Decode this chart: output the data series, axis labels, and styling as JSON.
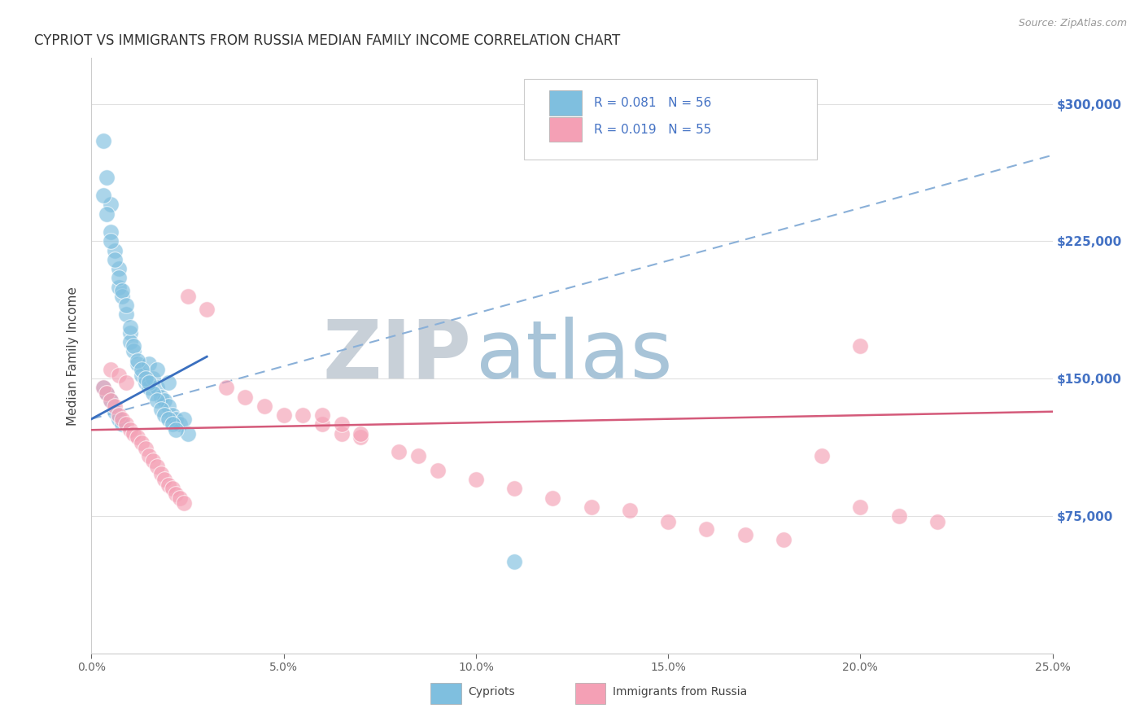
{
  "title": "CYPRIOT VS IMMIGRANTS FROM RUSSIA MEDIAN FAMILY INCOME CORRELATION CHART",
  "source_text": "Source: ZipAtlas.com",
  "ylabel": "Median Family Income",
  "xlim": [
    0.0,
    0.25
  ],
  "ylim": [
    0,
    325000
  ],
  "xticks": [
    0.0,
    0.05,
    0.1,
    0.15,
    0.2,
    0.25
  ],
  "xticklabels": [
    "0.0%",
    "5.0%",
    "10.0%",
    "15.0%",
    "20.0%",
    "25.0%"
  ],
  "yticks": [
    0,
    75000,
    150000,
    225000,
    300000
  ],
  "yticklabels": [
    "",
    "$75,000",
    "$150,000",
    "$225,000",
    "$300,000"
  ],
  "legend_labels": [
    "Cypriots",
    "Immigrants from Russia"
  ],
  "blue_color": "#7fbfdf",
  "pink_color": "#f4a0b5",
  "blue_line_color": "#3a6fbf",
  "pink_line_color": "#d45a7a",
  "dash_line_color": "#8ab0d8",
  "watermark_zip": "ZIP",
  "watermark_atlas": "atlas",
  "watermark_zip_color": "#c8d0d8",
  "watermark_atlas_color": "#a8c4d8",
  "background_color": "#ffffff",
  "blue_x": [
    0.003,
    0.004,
    0.005,
    0.005,
    0.006,
    0.007,
    0.007,
    0.008,
    0.009,
    0.01,
    0.01,
    0.011,
    0.012,
    0.013,
    0.014,
    0.015,
    0.015,
    0.016,
    0.017,
    0.017,
    0.018,
    0.019,
    0.02,
    0.021,
    0.022,
    0.023,
    0.024,
    0.025,
    0.003,
    0.004,
    0.005,
    0.006,
    0.007,
    0.008,
    0.009,
    0.01,
    0.011,
    0.012,
    0.013,
    0.014,
    0.015,
    0.016,
    0.017,
    0.018,
    0.019,
    0.02,
    0.021,
    0.022,
    0.003,
    0.004,
    0.005,
    0.006,
    0.007,
    0.008,
    0.02,
    0.11
  ],
  "blue_y": [
    280000,
    260000,
    245000,
    230000,
    220000,
    210000,
    200000,
    195000,
    185000,
    175000,
    170000,
    165000,
    158000,
    152000,
    148000,
    145000,
    158000,
    150000,
    145000,
    155000,
    140000,
    138000,
    135000,
    130000,
    128000,
    125000,
    128000,
    120000,
    250000,
    240000,
    225000,
    215000,
    205000,
    198000,
    190000,
    178000,
    168000,
    160000,
    155000,
    150000,
    148000,
    142000,
    138000,
    133000,
    130000,
    128000,
    125000,
    122000,
    145000,
    142000,
    138000,
    132000,
    128000,
    125000,
    148000,
    50000
  ],
  "pink_x": [
    0.003,
    0.004,
    0.005,
    0.006,
    0.007,
    0.008,
    0.009,
    0.01,
    0.011,
    0.012,
    0.013,
    0.014,
    0.015,
    0.016,
    0.017,
    0.018,
    0.019,
    0.02,
    0.021,
    0.022,
    0.023,
    0.024,
    0.025,
    0.03,
    0.035,
    0.04,
    0.045,
    0.05,
    0.055,
    0.06,
    0.065,
    0.07,
    0.08,
    0.085,
    0.09,
    0.1,
    0.11,
    0.12,
    0.13,
    0.14,
    0.15,
    0.16,
    0.17,
    0.18,
    0.19,
    0.2,
    0.21,
    0.22,
    0.005,
    0.007,
    0.009,
    0.06,
    0.065,
    0.07,
    0.2
  ],
  "pink_y": [
    145000,
    142000,
    138000,
    135000,
    130000,
    128000,
    125000,
    122000,
    120000,
    118000,
    115000,
    112000,
    108000,
    105000,
    102000,
    98000,
    95000,
    92000,
    90000,
    87000,
    85000,
    82000,
    195000,
    188000,
    145000,
    140000,
    135000,
    130000,
    130000,
    125000,
    120000,
    118000,
    110000,
    108000,
    100000,
    95000,
    90000,
    85000,
    80000,
    78000,
    72000,
    68000,
    65000,
    62000,
    108000,
    80000,
    75000,
    72000,
    155000,
    152000,
    148000,
    130000,
    125000,
    120000,
    168000
  ],
  "blue_trend_x": [
    0.0,
    0.03
  ],
  "blue_trend_y": [
    128000,
    162000
  ],
  "pink_trend_x": [
    0.0,
    0.25
  ],
  "pink_trend_y": [
    122000,
    132000
  ],
  "dash_trend_x": [
    0.0,
    0.25
  ],
  "dash_trend_y": [
    128000,
    272000
  ]
}
